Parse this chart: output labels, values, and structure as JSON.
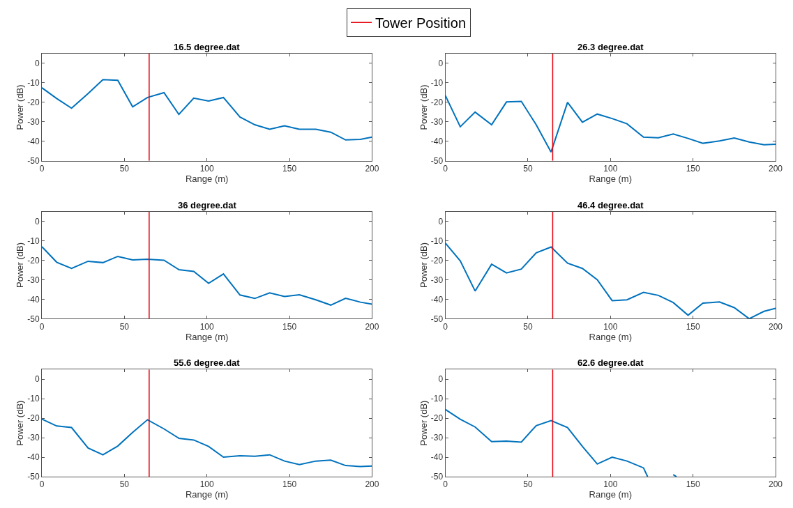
{
  "chart_data": [
    {
      "type": "line",
      "title": "16.5 degree.dat",
      "xlabel": "Range (m)",
      "ylabel": "Power (dB)",
      "x": [
        0,
        9,
        18,
        28,
        37,
        46,
        55,
        64,
        74,
        83,
        92,
        101,
        110,
        120,
        129,
        138,
        147,
        156,
        166,
        175,
        184,
        193,
        200
      ],
      "xlim": [
        0,
        200
      ],
      "ylim": [
        -50,
        5
      ],
      "xticks": [
        0,
        50,
        100,
        150,
        200
      ],
      "yticks": [
        -50,
        -40,
        -30,
        -20,
        -10,
        0
      ],
      "grid": false,
      "legend": "top",
      "series": [
        {
          "color": "#0072bd",
          "values": [
            -12.5,
            -18,
            -23,
            -15.5,
            -8.3,
            -8.7,
            -22.3,
            -17.5,
            -15,
            -26.2,
            -17.8,
            -19.3,
            -17.5,
            -27.5,
            -31.5,
            -33.8,
            -32,
            -33.8,
            -33.8,
            -35.3,
            -39.3,
            -39,
            -37.8
          ]
        }
      ],
      "ref_lines": [
        {
          "axis": "x",
          "value": 65,
          "label": "Tower Position",
          "color": "#e8000b"
        }
      ]
    },
    {
      "type": "line",
      "title": "26.3 degree.dat",
      "xlabel": "Range (m)",
      "ylabel": "Power (dB)",
      "x": [
        0,
        9,
        18,
        28,
        37,
        46,
        55,
        64,
        74,
        83,
        92,
        101,
        110,
        120,
        129,
        138,
        147,
        156,
        166,
        175,
        184,
        193,
        200
      ],
      "xlim": [
        0,
        200
      ],
      "ylim": [
        -50,
        5
      ],
      "xticks": [
        0,
        50,
        100,
        150,
        200
      ],
      "yticks": [
        -50,
        -40,
        -30,
        -20,
        -10,
        0
      ],
      "grid": false,
      "series": [
        {
          "color": "#0072bd",
          "values": [
            -16.5,
            -32.5,
            -25,
            -31.5,
            -19.8,
            -19.5,
            -31.5,
            -45.5,
            -20,
            -30.2,
            -26,
            -28.3,
            -31,
            -37.8,
            -38.2,
            -36.2,
            -38.5,
            -41,
            -39.8,
            -38.3,
            -40.3,
            -41.8,
            -41.5
          ]
        }
      ],
      "ref_lines": [
        {
          "axis": "x",
          "value": 65,
          "color": "#e8000b"
        }
      ]
    },
    {
      "type": "line",
      "title": "36 degree.dat",
      "xlabel": "Range (m)",
      "ylabel": "Power (dB)",
      "x": [
        0,
        9,
        18,
        28,
        37,
        46,
        55,
        64,
        74,
        83,
        92,
        101,
        110,
        120,
        129,
        138,
        147,
        156,
        166,
        175,
        184,
        193,
        200
      ],
      "xlim": [
        0,
        200
      ],
      "ylim": [
        -50,
        5
      ],
      "xticks": [
        0,
        50,
        100,
        150,
        200
      ],
      "yticks": [
        -50,
        -40,
        -30,
        -20,
        -10,
        0
      ],
      "grid": false,
      "series": [
        {
          "color": "#0072bd",
          "values": [
            -13,
            -21,
            -24.2,
            -20.5,
            -21.2,
            -18,
            -19.8,
            -19.5,
            -20,
            -24.8,
            -25.7,
            -31.8,
            -27,
            -37.8,
            -39.6,
            -36.7,
            -38.6,
            -37.7,
            -40.3,
            -43,
            -39.5,
            -41.5,
            -42.5
          ]
        }
      ],
      "ref_lines": [
        {
          "axis": "x",
          "value": 65,
          "color": "#e8000b"
        }
      ]
    },
    {
      "type": "line",
      "title": "46.4 degree.dat",
      "xlabel": "Range (m)",
      "ylabel": "Power (dB)",
      "x": [
        0,
        9,
        18,
        28,
        37,
        46,
        55,
        64,
        74,
        83,
        92,
        101,
        110,
        120,
        129,
        138,
        147,
        156,
        166,
        175,
        184,
        193,
        200
      ],
      "xlim": [
        0,
        200
      ],
      "ylim": [
        -50,
        5
      ],
      "xticks": [
        0,
        50,
        100,
        150,
        200
      ],
      "yticks": [
        -50,
        -40,
        -30,
        -20,
        -10,
        0
      ],
      "grid": false,
      "series": [
        {
          "color": "#0072bd",
          "values": [
            -11.2,
            -20.3,
            -35.8,
            -22,
            -26.5,
            -24.5,
            -16.2,
            -13.2,
            -21.5,
            -24.2,
            -30,
            -40.7,
            -40.3,
            -36.5,
            -38,
            -41.7,
            -48.2,
            -42,
            -41.4,
            -44.3,
            -50,
            -46.2,
            -44.7
          ]
        }
      ],
      "ref_lines": [
        {
          "axis": "x",
          "value": 65,
          "color": "#e8000b"
        }
      ]
    },
    {
      "type": "line",
      "title": "55.6 degree.dat",
      "xlabel": "Range (m)",
      "ylabel": "Power (dB)",
      "x": [
        0,
        9,
        18,
        28,
        37,
        46,
        55,
        64,
        74,
        83,
        92,
        101,
        110,
        120,
        129,
        138,
        147,
        156,
        166,
        175,
        184,
        193,
        200
      ],
      "xlim": [
        0,
        200
      ],
      "ylim": [
        -50,
        5
      ],
      "xticks": [
        0,
        50,
        100,
        150,
        200
      ],
      "yticks": [
        -50,
        -40,
        -30,
        -20,
        -10,
        0
      ],
      "grid": false,
      "series": [
        {
          "color": "#0072bd",
          "values": [
            -20.5,
            -24,
            -24.8,
            -35.3,
            -38.8,
            -34.3,
            -27.3,
            -20.8,
            -25.5,
            -30.3,
            -31.2,
            -34.5,
            -40,
            -39.3,
            -39.5,
            -38.8,
            -42,
            -43.8,
            -42,
            -41.5,
            -44.3,
            -44.8,
            -44.5
          ]
        }
      ],
      "ref_lines": [
        {
          "axis": "x",
          "value": 65,
          "color": "#e8000b"
        }
      ]
    },
    {
      "type": "line",
      "title": "62.6 degree.dat",
      "xlabel": "Range (m)",
      "ylabel": "Power (dB)",
      "x": [
        0,
        9,
        18,
        28,
        37,
        46,
        55,
        64,
        74,
        83,
        92,
        101,
        110,
        120,
        122.5,
        137,
        138,
        140
      ],
      "xlim": [
        0,
        200
      ],
      "ylim": [
        -50,
        5
      ],
      "xticks": [
        0,
        50,
        100,
        150,
        200
      ],
      "yticks": [
        -50,
        -40,
        -30,
        -20,
        -10,
        0
      ],
      "grid": false,
      "series": [
        {
          "color": "#0072bd",
          "values": [
            -15.5,
            -20.5,
            -24.5,
            -32,
            -31.8,
            -32.3,
            -23.8,
            -21.2,
            -24.8,
            -34.5,
            -43.5,
            -40,
            -42,
            -45.5,
            -50,
            null,
            -49,
            -50
          ]
        }
      ],
      "ref_lines": [
        {
          "axis": "x",
          "value": 65,
          "color": "#e8000b"
        }
      ]
    }
  ]
}
